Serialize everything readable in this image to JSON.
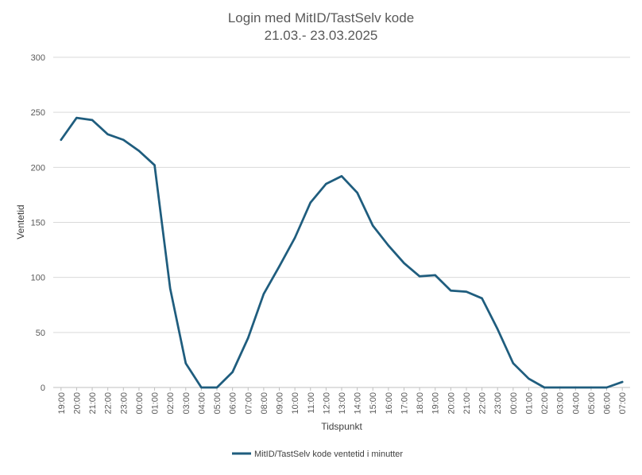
{
  "chart_data": {
    "type": "line",
    "title_lines": [
      "Login med MitID/TastSelv kode",
      "21.03.- 23.03.2025"
    ],
    "xlabel": "Tidspunkt",
    "ylabel": "Ventetid",
    "ylim": [
      0,
      300
    ],
    "yticks": [
      0,
      50,
      100,
      150,
      200,
      250,
      300
    ],
    "grid": true,
    "legend_position": "bottom-center",
    "categories": [
      "19:00",
      "20:00",
      "21:00",
      "22:00",
      "23:00",
      "00:00",
      "01:00",
      "02:00",
      "03:00",
      "04:00",
      "05:00",
      "06:00",
      "07:00",
      "08:00",
      "09:00",
      "10:00",
      "11:00",
      "12:00",
      "13:00",
      "14:00",
      "15:00",
      "16:00",
      "17:00",
      "18:00",
      "19:00",
      "20:00",
      "21:00",
      "22:00",
      "23:00",
      "00:00",
      "01:00",
      "02:00",
      "03:00",
      "04:00",
      "05:00",
      "06:00",
      "07:00"
    ],
    "series": [
      {
        "name": "MitID/TastSelv kode ventetid i minutter",
        "color": "#1f5d7e",
        "values": [
          225,
          245,
          243,
          230,
          225,
          215,
          202,
          90,
          22,
          0,
          0,
          14,
          45,
          85,
          110,
          136,
          168,
          185,
          192,
          177,
          147,
          129,
          113,
          101,
          102,
          88,
          87,
          81,
          53,
          22,
          8,
          0,
          0,
          0,
          0,
          0,
          5
        ]
      }
    ]
  }
}
